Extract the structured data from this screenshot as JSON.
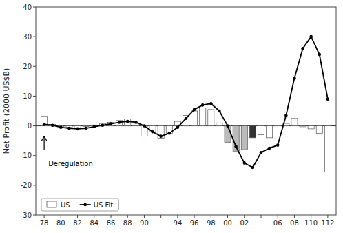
{
  "chart_data": {
    "type": "bar",
    "y_label": "Net Profit (2000 US$B)",
    "x": [
      78,
      79,
      80,
      81,
      82,
      83,
      84,
      85,
      86,
      87,
      88,
      89,
      90,
      91,
      92,
      93,
      94,
      95,
      96,
      97,
      98,
      99,
      100,
      101,
      102,
      103,
      104,
      105,
      106,
      107,
      108,
      109,
      110,
      111,
      112
    ],
    "series": [
      {
        "name": "US",
        "type": "bar",
        "colors": [
          "white",
          "white",
          "white",
          "white",
          "white",
          "white",
          "white",
          "white",
          "white",
          "white",
          "white",
          "white",
          "white",
          "white",
          "white",
          "white",
          "white",
          "white",
          "white",
          "white",
          "white",
          "white",
          "#bbbbbb",
          "#bbbbbb",
          "#bbbbbb",
          "#333333",
          "white",
          "white",
          "white",
          "white",
          "white",
          "white",
          "white",
          "white",
          "white"
        ],
        "values": [
          3.2,
          0.5,
          -0.3,
          -0.5,
          -1.0,
          -0.2,
          0.3,
          0.8,
          1.2,
          1.8,
          2.3,
          0.3,
          -3.5,
          -2.0,
          -4.2,
          -2.5,
          1.5,
          3.5,
          5.0,
          6.0,
          5.5,
          1.0,
          -5.5,
          -8.5,
          -8.0,
          -4.0,
          -3.0,
          -4.0,
          0.2,
          0.8,
          2.5,
          -0.3,
          -1.0,
          -2.5,
          -15.5
        ]
      },
      {
        "name": "US Fit",
        "type": "line",
        "color": "#000000",
        "marker": "circle",
        "values": [
          0.5,
          0.2,
          -0.5,
          -0.8,
          -1.0,
          -0.8,
          -0.3,
          0.2,
          0.7,
          1.2,
          1.5,
          1.2,
          0.0,
          -2.0,
          -3.5,
          -2.5,
          -0.5,
          2.5,
          5.5,
          7.0,
          7.5,
          5.0,
          0.0,
          -7.0,
          -12.5,
          -14.0,
          -9.0,
          -7.5,
          -6.5,
          3.5,
          16.0,
          26.0,
          30.0,
          24.0,
          9.0
        ]
      }
    ],
    "xlim": [
      77,
      113
    ],
    "xticks": [
      78,
      80,
      82,
      84,
      86,
      88,
      90,
      {
        "value": 92,
        "label": null
      },
      94,
      96,
      98,
      {
        "value": 100,
        "label": "00"
      },
      {
        "value": 102,
        "label": "02"
      },
      {
        "value": 104,
        "label": null
      },
      {
        "value": 106,
        "label": "06"
      },
      {
        "value": 108,
        "label": "08"
      },
      110,
      112
    ],
    "ylim": [
      -30,
      40
    ],
    "yticks": [
      -30,
      -20,
      -10,
      0,
      10,
      20,
      30,
      40
    ],
    "grid": false,
    "legend": "lower left",
    "annotations": [
      {
        "text": "Deregulation",
        "x": 78.5,
        "y": -13.5,
        "arrow": {
          "x": 78,
          "y_from": -8.0,
          "y_to": -3.5
        }
      }
    ]
  }
}
